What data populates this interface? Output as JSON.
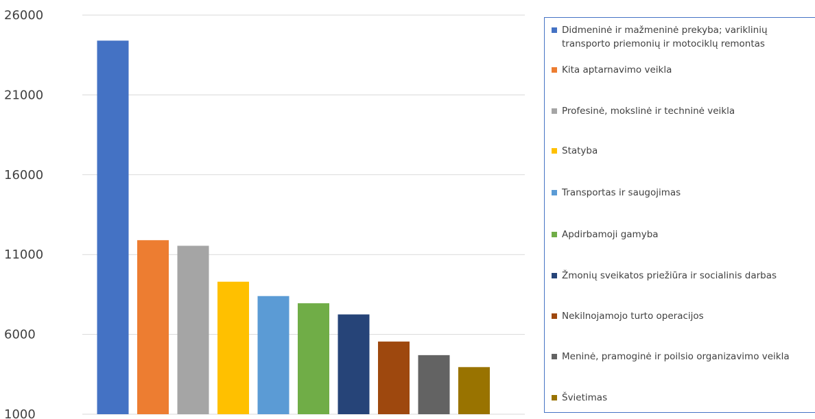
{
  "chart_data": {
    "type": "bar",
    "categories": [
      "Didmeninė ir mažmeninė prekyba; variklinių transporto priemonių ir motociklų remontas",
      "Kita aptarnavimo veikla",
      "Profesinė, mokslinė ir techninė veikla",
      "Statyba",
      "Transportas ir saugojimas",
      "Apdirbamoji gamyba",
      "Žmonių sveikatos priežiūra ir socialinis darbas",
      "Nekilnojamojo turto operacijos",
      "Meninė, pramoginė ir poilsio organizavimo veikla",
      "Švietimas"
    ],
    "values": [
      24400,
      11900,
      11550,
      9300,
      8400,
      7950,
      7250,
      5550,
      4700,
      3950
    ],
    "colors": [
      "#4472c4",
      "#ed7d31",
      "#a5a5a5",
      "#ffc000",
      "#5b9bd5",
      "#70ad47",
      "#264478",
      "#9e480e",
      "#636363",
      "#997300"
    ],
    "ylim": [
      1000,
      26000
    ],
    "yticks": [
      "26000",
      "21000",
      "16000",
      "11000",
      "6000",
      "1000"
    ],
    "grid": true,
    "legend_position": "right",
    "title": "",
    "xlabel": "",
    "ylabel": ""
  }
}
